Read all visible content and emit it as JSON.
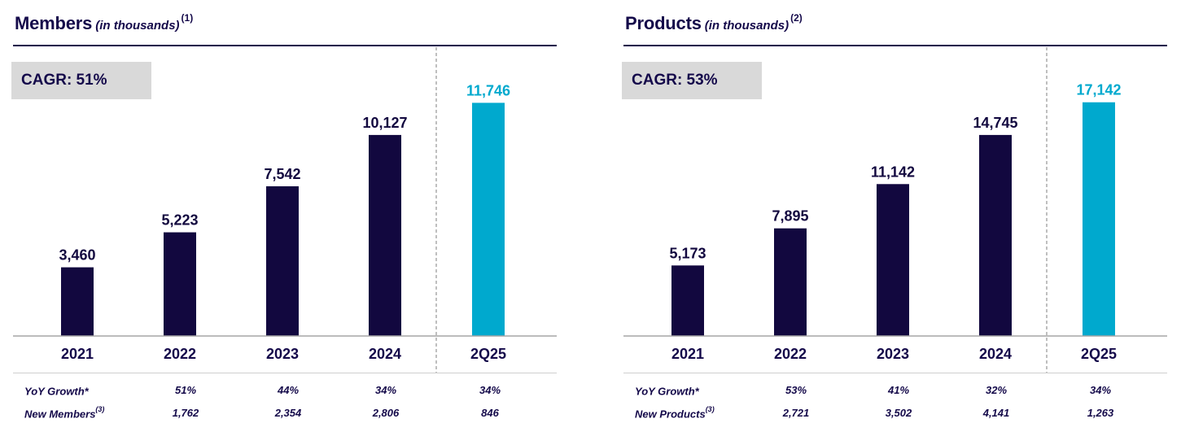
{
  "chart_data": [
    {
      "type": "bar",
      "title": "Members",
      "subtitle": "(in thousands)",
      "footnote_marker": "(1)",
      "cagr": "CAGR: 51%",
      "categories": [
        "2021",
        "2022",
        "2023",
        "2024",
        "2Q25"
      ],
      "values": [
        3460,
        5223,
        7542,
        10127,
        11746
      ],
      "value_labels": [
        "3,460",
        "5,223",
        "7,542",
        "10,127",
        "11,746"
      ],
      "highlight_index": 4,
      "ylim": [
        0,
        12500
      ],
      "rows": [
        {
          "label": "YoY Growth*",
          "sup": "",
          "values": [
            "51%",
            "44%",
            "34%",
            "34%"
          ]
        },
        {
          "label": "New Members",
          "sup": "(3)",
          "values": [
            "1,762",
            "2,354",
            "2,806",
            "846"
          ]
        }
      ]
    },
    {
      "type": "bar",
      "title": "Products",
      "subtitle": "(in thousands)",
      "footnote_marker": "(2)",
      "cagr": "CAGR: 53%",
      "categories": [
        "2021",
        "2022",
        "2023",
        "2024",
        "2Q25"
      ],
      "values": [
        5173,
        7895,
        11142,
        14745,
        17142
      ],
      "value_labels": [
        "5,173",
        "7,895",
        "11,142",
        "14,745",
        "17,142"
      ],
      "highlight_index": 4,
      "ylim": [
        0,
        18200
      ],
      "rows": [
        {
          "label": "YoY Growth*",
          "sup": "",
          "values": [
            "53%",
            "41%",
            "32%",
            "34%"
          ]
        },
        {
          "label": "New Products",
          "sup": "(3)",
          "values": [
            "2,721",
            "3,502",
            "4,141",
            "1,263"
          ]
        }
      ]
    }
  ],
  "colors": {
    "navy": "#12083f",
    "accent": "#00a9ce",
    "cagr_bg": "#d9d9d9",
    "axis": "#a6a6a6",
    "divider": "#7f7f7f"
  }
}
